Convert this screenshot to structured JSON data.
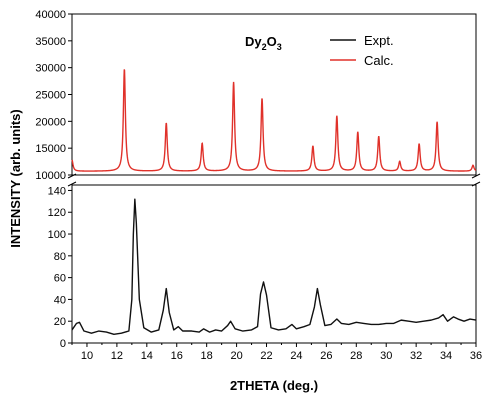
{
  "chart_data": {
    "type": "line",
    "xlabel": "2THETA (deg.)",
    "ylabel": "INTENSITY (arb. units)",
    "xlim": [
      9,
      36
    ],
    "x_ticks": [
      "10",
      "12",
      "14",
      "16",
      "18",
      "20",
      "22",
      "24",
      "26",
      "28",
      "30",
      "32",
      "34",
      "36"
    ],
    "annotation": {
      "main": "Dy",
      "sub1": "2",
      "mid": "O",
      "sub2": "3"
    },
    "legend_position": "top-right",
    "panels": [
      {
        "id": "upper",
        "ylim": [
          10000,
          40000
        ],
        "y_ticks": [
          "10000",
          "15000",
          "20000",
          "25000",
          "30000",
          "35000",
          "40000"
        ],
        "series": [
          {
            "name": "Calc.",
            "color": "#e0312a",
            "baseline": 10700,
            "width": 0.08,
            "peaks": [
              {
                "x": 9.0,
                "y": 12800
              },
              {
                "x": 12.5,
                "y": 29800
              },
              {
                "x": 15.3,
                "y": 19700
              },
              {
                "x": 17.7,
                "y": 15900
              },
              {
                "x": 19.8,
                "y": 27300
              },
              {
                "x": 21.7,
                "y": 24300
              },
              {
                "x": 25.1,
                "y": 15400
              },
              {
                "x": 26.7,
                "y": 21000
              },
              {
                "x": 28.1,
                "y": 18000
              },
              {
                "x": 29.5,
                "y": 17200
              },
              {
                "x": 30.9,
                "y": 12500
              },
              {
                "x": 32.2,
                "y": 15800
              },
              {
                "x": 33.4,
                "y": 19900
              },
              {
                "x": 35.8,
                "y": 11800
              }
            ]
          }
        ]
      },
      {
        "id": "lower",
        "ylim": [
          0,
          145
        ],
        "y_ticks": [
          "0",
          "20",
          "40",
          "60",
          "80",
          "100",
          "120",
          "140"
        ],
        "series": [
          {
            "name": "Expt.",
            "color": "#111111",
            "points": [
              [
                9.0,
                12
              ],
              [
                9.3,
                18
              ],
              [
                9.5,
                19
              ],
              [
                9.8,
                11
              ],
              [
                10.3,
                9
              ],
              [
                10.8,
                11
              ],
              [
                11.3,
                10
              ],
              [
                11.8,
                8
              ],
              [
                12.3,
                9
              ],
              [
                12.8,
                11
              ],
              [
                13.0,
                40
              ],
              [
                13.1,
                100
              ],
              [
                13.2,
                132
              ],
              [
                13.3,
                110
              ],
              [
                13.5,
                40
              ],
              [
                13.8,
                14
              ],
              [
                14.3,
                10
              ],
              [
                14.8,
                12
              ],
              [
                15.1,
                30
              ],
              [
                15.3,
                50
              ],
              [
                15.5,
                28
              ],
              [
                15.8,
                12
              ],
              [
                16.1,
                15
              ],
              [
                16.4,
                11
              ],
              [
                17.0,
                11
              ],
              [
                17.5,
                10
              ],
              [
                17.8,
                13
              ],
              [
                18.2,
                10
              ],
              [
                18.6,
                12
              ],
              [
                19.0,
                11
              ],
              [
                19.4,
                16
              ],
              [
                19.6,
                20
              ],
              [
                19.9,
                13
              ],
              [
                20.4,
                11
              ],
              [
                21.0,
                12
              ],
              [
                21.4,
                15
              ],
              [
                21.6,
                45
              ],
              [
                21.8,
                56
              ],
              [
                22.0,
                44
              ],
              [
                22.3,
                14
              ],
              [
                22.8,
                12
              ],
              [
                23.3,
                13
              ],
              [
                23.7,
                17
              ],
              [
                24.0,
                13
              ],
              [
                24.5,
                15
              ],
              [
                24.9,
                17
              ],
              [
                25.2,
                33
              ],
              [
                25.4,
                50
              ],
              [
                25.6,
                35
              ],
              [
                25.9,
                16
              ],
              [
                26.3,
                17
              ],
              [
                26.7,
                22
              ],
              [
                27.0,
                18
              ],
              [
                27.5,
                17
              ],
              [
                28.0,
                19
              ],
              [
                28.5,
                18
              ],
              [
                29.0,
                17
              ],
              [
                29.5,
                17
              ],
              [
                30.0,
                18
              ],
              [
                30.5,
                18
              ],
              [
                31.0,
                21
              ],
              [
                31.5,
                20
              ],
              [
                32.0,
                19
              ],
              [
                32.5,
                20
              ],
              [
                33.0,
                21
              ],
              [
                33.5,
                23
              ],
              [
                33.8,
                26
              ],
              [
                34.1,
                20
              ],
              [
                34.5,
                24
              ],
              [
                34.8,
                22
              ],
              [
                35.2,
                20
              ],
              [
                35.6,
                22
              ],
              [
                36.0,
                21
              ]
            ]
          }
        ]
      }
    ]
  }
}
